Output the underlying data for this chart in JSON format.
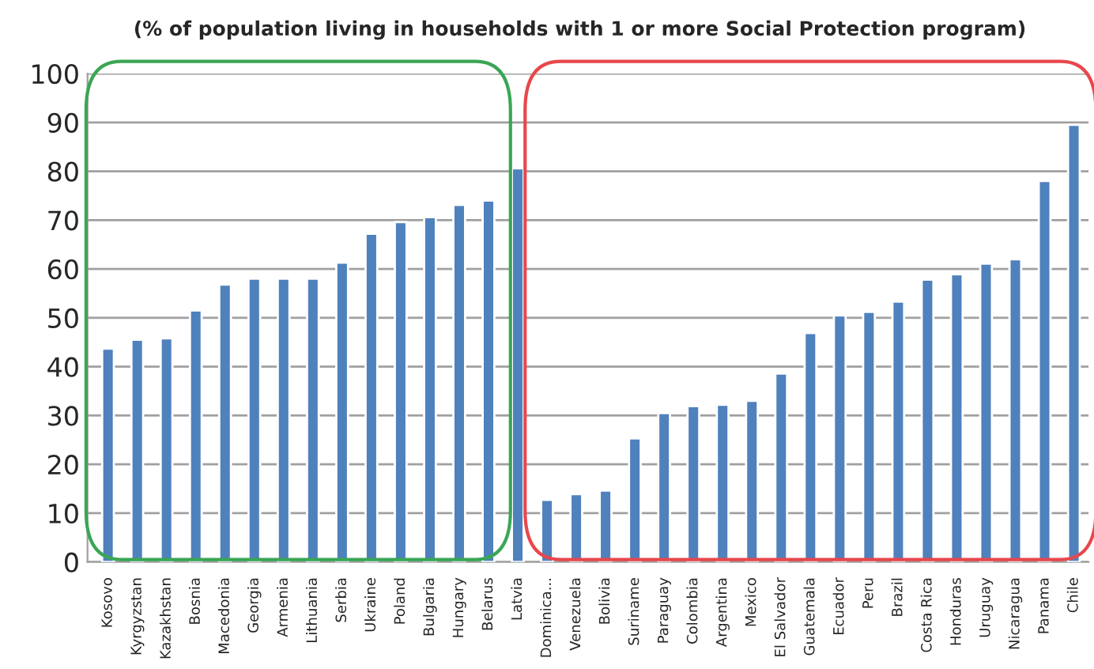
{
  "chart_data": {
    "type": "bar",
    "title": "(% of population living in households with 1 or more Social Protection program)",
    "categories": [
      "Kosovo",
      "Kyrgyzstan",
      "Kazakhstan",
      "Bosnia",
      "Macedonia",
      "Georgia",
      "Armenia",
      "Lithuania",
      "Serbia",
      "Ukraine",
      "Poland",
      "Bulgaria",
      "Hungary",
      "Belarus",
      "Latvia",
      "Dominica...",
      "Venezuela",
      "Bolivia",
      "Suriname",
      "Paraguay",
      "Colombia",
      "Argentina",
      "Mexico",
      "El Salvador",
      "Guatemala",
      "Ecuador",
      "Peru",
      "Brazil",
      "Costa Rica",
      "Honduras",
      "Uruguay",
      "Nicaragua",
      "Panama",
      "Chile"
    ],
    "values": [
      43.7,
      45.5,
      45.8,
      51.5,
      56.8,
      58,
      58,
      58,
      61.3,
      67.2,
      69.6,
      70.6,
      73.1,
      74,
      80.6,
      12.7,
      13.9,
      14.6,
      25.3,
      30.5,
      31.9,
      32.2,
      33,
      38.6,
      46.9,
      50.5,
      51.2,
      53.3,
      57.8,
      58.9,
      61.1,
      62,
      78,
      89.5
    ],
    "color": "#4f81bd",
    "ylim": [
      0,
      100
    ],
    "yticks": [
      0,
      10,
      20,
      30,
      40,
      50,
      60,
      70,
      80,
      90,
      100
    ],
    "grid": "y"
  }
}
